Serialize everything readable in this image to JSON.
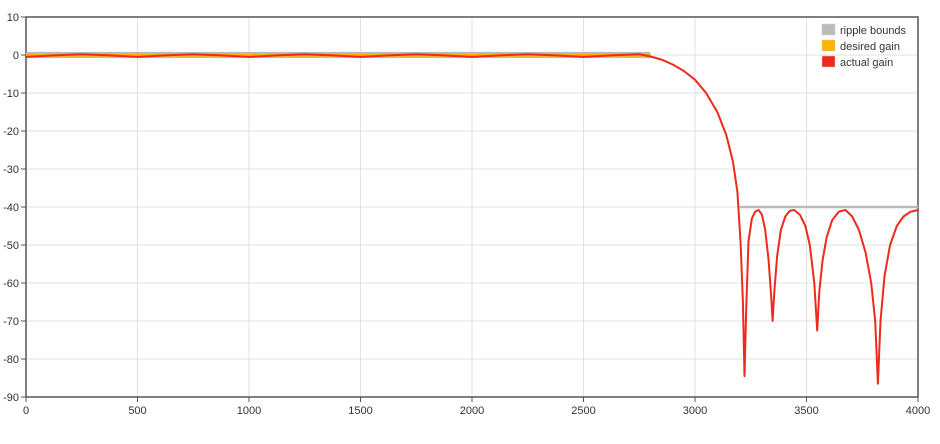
{
  "chart_data": {
    "type": "line",
    "title": "",
    "xlabel": "",
    "ylabel": "",
    "xlim": [
      0,
      4000
    ],
    "ylim": [
      -90,
      10
    ],
    "x_ticks": [
      "0",
      "500",
      "1000",
      "1500",
      "2000",
      "2500",
      "3000",
      "3500",
      "4000"
    ],
    "y_ticks": [
      "10",
      "0",
      "-10",
      "-20",
      "-30",
      "-40",
      "-50",
      "-60",
      "-70",
      "-80",
      "-90"
    ],
    "grid": true,
    "legend_position": "top-right",
    "legend": [
      {
        "label": "ripple bounds",
        "color": "#bbbbbb"
      },
      {
        "label": "desired gain",
        "color": "#ffb300"
      },
      {
        "label": "actual gain",
        "color": "#ee2a1c"
      }
    ],
    "series": [
      {
        "name": "ripple bounds",
        "color": "#bbbbbb",
        "segments": [
          [
            [
              0,
              0.5
            ],
            [
              2800,
              0.5
            ]
          ],
          [
            [
              0,
              -0.5
            ],
            [
              2800,
              -0.5
            ]
          ],
          [
            [
              3200,
              -40
            ],
            [
              4000,
              -40
            ]
          ]
        ]
      },
      {
        "name": "desired gain",
        "color": "#ffb300",
        "segments": [
          [
            [
              0,
              0
            ],
            [
              2800,
              0
            ]
          ]
        ]
      },
      {
        "name": "actual gain",
        "color": "#ee2a1c",
        "points": [
          [
            0,
            -0.5
          ],
          [
            125,
            -0.1
          ],
          [
            250,
            0.2
          ],
          [
            375,
            -0.1
          ],
          [
            500,
            -0.5
          ],
          [
            625,
            -0.1
          ],
          [
            750,
            0.2
          ],
          [
            875,
            -0.1
          ],
          [
            1000,
            -0.5
          ],
          [
            1125,
            -0.1
          ],
          [
            1250,
            0.2
          ],
          [
            1375,
            -0.1
          ],
          [
            1500,
            -0.5
          ],
          [
            1625,
            -0.1
          ],
          [
            1750,
            0.2
          ],
          [
            1875,
            -0.1
          ],
          [
            2000,
            -0.5
          ],
          [
            2125,
            -0.1
          ],
          [
            2250,
            0.2
          ],
          [
            2375,
            -0.1
          ],
          [
            2500,
            -0.5
          ],
          [
            2625,
            -0.1
          ],
          [
            2750,
            0.2
          ],
          [
            2800,
            -0.4
          ],
          [
            2850,
            -1.2
          ],
          [
            2900,
            -2.5
          ],
          [
            2950,
            -4.2
          ],
          [
            3000,
            -6.5
          ],
          [
            3050,
            -10
          ],
          [
            3100,
            -15
          ],
          [
            3140,
            -21
          ],
          [
            3170,
            -28
          ],
          [
            3190,
            -36
          ],
          [
            3205,
            -50
          ],
          [
            3215,
            -65
          ],
          [
            3222,
            -84.5
          ],
          [
            3230,
            -66
          ],
          [
            3240,
            -49
          ],
          [
            3255,
            -43
          ],
          [
            3270,
            -41.2
          ],
          [
            3285,
            -40.8
          ],
          [
            3300,
            -42
          ],
          [
            3315,
            -46
          ],
          [
            3330,
            -54
          ],
          [
            3342,
            -64
          ],
          [
            3348,
            -70
          ],
          [
            3356,
            -62
          ],
          [
            3368,
            -53
          ],
          [
            3385,
            -46
          ],
          [
            3405,
            -42.5
          ],
          [
            3425,
            -41
          ],
          [
            3445,
            -40.8
          ],
          [
            3470,
            -42
          ],
          [
            3495,
            -45
          ],
          [
            3515,
            -50
          ],
          [
            3535,
            -60
          ],
          [
            3548,
            -72.5
          ],
          [
            3558,
            -62
          ],
          [
            3572,
            -54
          ],
          [
            3590,
            -48
          ],
          [
            3615,
            -43.5
          ],
          [
            3645,
            -41.2
          ],
          [
            3675,
            -40.8
          ],
          [
            3705,
            -42.5
          ],
          [
            3735,
            -46
          ],
          [
            3765,
            -52
          ],
          [
            3790,
            -60
          ],
          [
            3808,
            -70
          ],
          [
            3820,
            -86.5
          ],
          [
            3832,
            -70
          ],
          [
            3850,
            -58
          ],
          [
            3875,
            -50
          ],
          [
            3905,
            -45
          ],
          [
            3935,
            -42.5
          ],
          [
            3965,
            -41.3
          ],
          [
            4000,
            -40.8
          ]
        ]
      }
    ]
  }
}
